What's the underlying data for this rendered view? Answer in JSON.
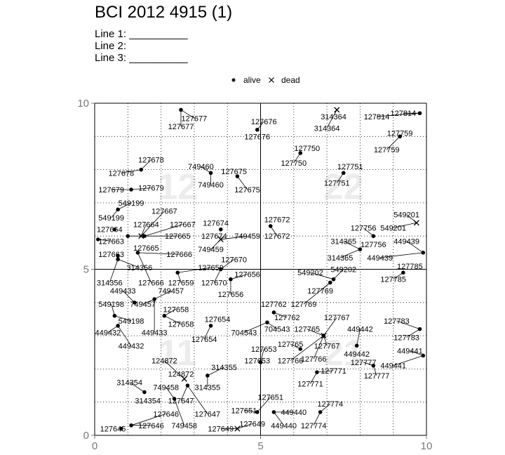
{
  "title": "BCI 2012 4915 (1)",
  "lines": [
    {
      "label": "Line 1:",
      "blank": "__________"
    },
    {
      "label": "Line 2:",
      "blank": ""
    },
    {
      "label": "Line 3:",
      "blank": "__________"
    }
  ],
  "chart_data": {
    "type": "scatter",
    "title": "BCI 2012 4915 (1)",
    "xlabel": "",
    "ylabel": "",
    "xlim": [
      0,
      10
    ],
    "ylim": [
      0,
      10
    ],
    "xticks": [
      "0",
      "5",
      "10"
    ],
    "yticks": [
      "0",
      "5",
      "10"
    ],
    "grid": true,
    "legend_position": "top",
    "legend": [
      {
        "name": "alive",
        "marker": "dot"
      },
      {
        "name": "dead",
        "marker": "cross"
      }
    ],
    "quadrant_labels": [
      {
        "text": "12",
        "x": 2.5,
        "y": 7.5
      },
      {
        "text": "22",
        "x": 7.5,
        "y": 7.5
      },
      {
        "text": "11",
        "x": 2.5,
        "y": 2.5
      },
      {
        "text": "21",
        "x": 7.5,
        "y": 2.5
      }
    ],
    "points": [
      {
        "id": "127677",
        "x": 2.6,
        "y": 9.8,
        "status": "alive",
        "tx": 2.6,
        "ty": 9.3
      },
      {
        "id": "127677",
        "x": 2.6,
        "y": 9.8,
        "status": "alive",
        "tx": 3.0,
        "ty": 9.55
      },
      {
        "id": "127676",
        "x": 4.9,
        "y": 9.2,
        "status": "alive",
        "tx": 5.1,
        "ty": 9.45
      },
      {
        "id": "127676",
        "x": 4.9,
        "y": 9.2,
        "status": "alive",
        "tx": 4.9,
        "ty": 9.0
      },
      {
        "id": "314364",
        "x": 7.3,
        "y": 9.8,
        "status": "dead",
        "tx": 7.2,
        "ty": 9.6
      },
      {
        "id": "314364",
        "x": 7.3,
        "y": 9.8,
        "status": "dead",
        "tx": 7.0,
        "ty": 9.25
      },
      {
        "id": "127814",
        "x": 9.8,
        "y": 9.7,
        "status": "alive",
        "tx": 8.5,
        "ty": 9.6
      },
      {
        "id": "127814",
        "x": 9.8,
        "y": 9.7,
        "status": "alive",
        "tx": 9.3,
        "ty": 9.7
      },
      {
        "id": "127759",
        "x": 9.2,
        "y": 9.0,
        "status": "alive",
        "tx": 9.2,
        "ty": 9.1
      },
      {
        "id": "127759",
        "x": 9.2,
        "y": 9.0,
        "status": "alive",
        "tx": 8.8,
        "ty": 8.6
      },
      {
        "id": "127678",
        "x": 1.4,
        "y": 8.0,
        "status": "alive",
        "tx": 1.7,
        "ty": 8.3
      },
      {
        "id": "127678",
        "x": 1.4,
        "y": 8.0,
        "status": "alive",
        "tx": 0.8,
        "ty": 7.9
      },
      {
        "id": "749460",
        "x": 3.5,
        "y": 7.9,
        "status": "alive",
        "tx": 3.2,
        "ty": 8.1
      },
      {
        "id": "749460",
        "x": 3.5,
        "y": 7.9,
        "status": "alive",
        "tx": 3.5,
        "ty": 7.55
      },
      {
        "id": "127675",
        "x": 4.3,
        "y": 7.8,
        "status": "alive",
        "tx": 4.2,
        "ty": 7.95
      },
      {
        "id": "127675",
        "x": 4.3,
        "y": 7.8,
        "status": "alive",
        "tx": 4.6,
        "ty": 7.4
      },
      {
        "id": "127750",
        "x": 6.2,
        "y": 8.5,
        "status": "alive",
        "tx": 6.4,
        "ty": 8.65
      },
      {
        "id": "127750",
        "x": 6.2,
        "y": 8.5,
        "status": "alive",
        "tx": 6.0,
        "ty": 8.2
      },
      {
        "id": "127751",
        "x": 7.5,
        "y": 7.9,
        "status": "alive",
        "tx": 7.7,
        "ty": 8.1
      },
      {
        "id": "127751",
        "x": 7.5,
        "y": 7.9,
        "status": "alive",
        "tx": 7.3,
        "ty": 7.6
      },
      {
        "id": "127679",
        "x": 1.1,
        "y": 7.4,
        "status": "alive",
        "tx": 0.5,
        "ty": 7.4
      },
      {
        "id": "127679",
        "x": 1.1,
        "y": 7.4,
        "status": "alive",
        "tx": 1.7,
        "ty": 7.45
      },
      {
        "id": "549199",
        "x": 0.7,
        "y": 6.8,
        "status": "alive",
        "tx": 1.1,
        "ty": 7.0
      },
      {
        "id": "549199",
        "x": 0.7,
        "y": 6.8,
        "status": "alive",
        "tx": 0.5,
        "ty": 6.55
      },
      {
        "id": "127667",
        "x": 1.4,
        "y": 6.0,
        "status": "dead",
        "tx": 2.1,
        "ty": 6.75
      },
      {
        "id": "127664",
        "x": 1.4,
        "y": 6.0,
        "status": "dead",
        "tx": 1.55,
        "ty": 6.35
      },
      {
        "id": "127664",
        "x": 0.6,
        "y": 6.2,
        "status": "alive",
        "tx": 0.45,
        "ty": 6.2
      },
      {
        "id": "127667",
        "x": 1.5,
        "y": 6.0,
        "status": "alive",
        "tx": 2.65,
        "ty": 6.35
      },
      {
        "id": "127665",
        "x": 1.0,
        "y": 6.0,
        "status": "alive",
        "tx": 2.5,
        "ty": 6.0
      },
      {
        "id": "127663",
        "x": 0.1,
        "y": 5.9,
        "status": "alive",
        "tx": 0.5,
        "ty": 5.85
      },
      {
        "id": "127674",
        "x": 3.8,
        "y": 6.2,
        "status": "alive",
        "tx": 3.65,
        "ty": 6.4
      },
      {
        "id": "127674",
        "x": 3.8,
        "y": 6.2,
        "status": "alive",
        "tx": 3.6,
        "ty": 6.0
      },
      {
        "id": "749459",
        "x": 3.8,
        "y": 5.9,
        "status": "dead",
        "tx": 4.6,
        "ty": 6.0
      },
      {
        "id": "749459",
        "x": 3.8,
        "y": 5.9,
        "status": "dead",
        "tx": 3.5,
        "ty": 5.6
      },
      {
        "id": "127672",
        "x": 5.3,
        "y": 6.3,
        "status": "alive",
        "tx": 5.5,
        "ty": 6.5
      },
      {
        "id": "127672",
        "x": 5.3,
        "y": 6.3,
        "status": "alive",
        "tx": 5.5,
        "ty": 6.0
      },
      {
        "id": "549201",
        "x": 9.7,
        "y": 6.4,
        "status": "dead",
        "tx": 9.4,
        "ty": 6.65
      },
      {
        "id": "549201",
        "x": 9.7,
        "y": 6.4,
        "status": "dead",
        "tx": 9.0,
        "ty": 6.25
      },
      {
        "id": "127756",
        "x": 8.4,
        "y": 6.0,
        "status": "alive",
        "tx": 8.1,
        "ty": 6.25
      },
      {
        "id": "127756",
        "x": 8.4,
        "y": 6.0,
        "status": "alive",
        "tx": 8.4,
        "ty": 5.75
      },
      {
        "id": "314365",
        "x": 8.0,
        "y": 5.6,
        "status": "alive",
        "tx": 7.5,
        "ty": 5.85
      },
      {
        "id": "314365",
        "x": 8.0,
        "y": 5.6,
        "status": "alive",
        "tx": 7.4,
        "ty": 5.35
      },
      {
        "id": "449439",
        "x": 9.9,
        "y": 5.5,
        "status": "alive",
        "tx": 9.4,
        "ty": 5.85
      },
      {
        "id": "449439",
        "x": 9.9,
        "y": 5.5,
        "status": "alive",
        "tx": 8.6,
        "ty": 5.35
      },
      {
        "id": "127663",
        "x": 0.7,
        "y": 5.4,
        "status": "alive",
        "tx": 0.5,
        "ty": 5.45
      },
      {
        "id": "127665",
        "x": 1.3,
        "y": 5.5,
        "status": "alive",
        "tx": 1.55,
        "ty": 5.65
      },
      {
        "id": "127666",
        "x": 1.3,
        "y": 5.5,
        "status": "alive",
        "tx": 2.55,
        "ty": 5.45
      },
      {
        "id": "314356",
        "x": 0.7,
        "y": 5.3,
        "status": "alive",
        "tx": 1.35,
        "ty": 5.05
      },
      {
        "id": "314356",
        "x": 0.7,
        "y": 5.3,
        "status": "alive",
        "tx": 0.45,
        "ty": 4.6
      },
      {
        "id": "127666",
        "x": 1.3,
        "y": 5.5,
        "status": "alive",
        "tx": 1.7,
        "ty": 4.6
      },
      {
        "id": "127670",
        "x": 3.8,
        "y": 5.0,
        "status": "alive",
        "tx": 4.2,
        "ty": 5.3
      },
      {
        "id": "127670",
        "x": 3.8,
        "y": 5.0,
        "status": "alive",
        "tx": 3.6,
        "ty": 4.6
      },
      {
        "id": "127659",
        "x": 2.5,
        "y": 4.9,
        "status": "alive",
        "tx": 3.5,
        "ty": 5.05
      },
      {
        "id": "127659",
        "x": 2.5,
        "y": 4.9,
        "status": "alive",
        "tx": 2.6,
        "ty": 4.6
      },
      {
        "id": "127656",
        "x": 4.1,
        "y": 4.7,
        "status": "alive",
        "tx": 4.6,
        "ty": 4.85
      },
      {
        "id": "127656",
        "x": 4.1,
        "y": 4.7,
        "status": "alive",
        "tx": 4.1,
        "ty": 4.25
      },
      {
        "id": "549202",
        "x": 7.2,
        "y": 4.7,
        "status": "alive",
        "tx": 6.5,
        "ty": 4.9
      },
      {
        "id": "549202",
        "x": 7.2,
        "y": 4.7,
        "status": "alive",
        "tx": 7.5,
        "ty": 5.0
      },
      {
        "id": "127769",
        "x": 7.1,
        "y": 4.6,
        "status": "alive",
        "tx": 6.8,
        "ty": 4.35
      },
      {
        "id": "127769",
        "x": 7.1,
        "y": 4.6,
        "status": "alive",
        "tx": 6.3,
        "ty": 3.95
      },
      {
        "id": "127785",
        "x": 9.3,
        "y": 4.9,
        "status": "alive",
        "tx": 9.5,
        "ty": 5.1
      },
      {
        "id": "127785",
        "x": 9.3,
        "y": 4.9,
        "status": "alive",
        "tx": 9.0,
        "ty": 4.7
      },
      {
        "id": "449433",
        "x": 1.2,
        "y": 4.0,
        "status": "alive",
        "tx": 0.85,
        "ty": 4.35
      },
      {
        "id": "749457",
        "x": 1.8,
        "y": 4.1,
        "status": "alive",
        "tx": 2.3,
        "ty": 4.35
      },
      {
        "id": "549198",
        "x": 0.6,
        "y": 3.6,
        "status": "alive",
        "tx": 0.5,
        "ty": 3.95
      },
      {
        "id": "749457",
        "x": 1.8,
        "y": 4.1,
        "status": "alive",
        "tx": 1.45,
        "ty": 3.95
      },
      {
        "id": "549198",
        "x": 0.6,
        "y": 3.6,
        "status": "alive",
        "tx": 1.1,
        "ty": 3.45
      },
      {
        "id": "127658",
        "x": 2.1,
        "y": 3.6,
        "status": "alive",
        "tx": 2.45,
        "ty": 3.8
      },
      {
        "id": "127658",
        "x": 2.1,
        "y": 3.6,
        "status": "alive",
        "tx": 2.6,
        "ty": 3.35
      },
      {
        "id": "127654",
        "x": 3.5,
        "y": 3.3,
        "status": "alive",
        "tx": 3.7,
        "ty": 3.5
      },
      {
        "id": "127654",
        "x": 3.5,
        "y": 3.3,
        "status": "alive",
        "tx": 3.3,
        "ty": 2.9
      },
      {
        "id": "449433",
        "x": 1.8,
        "y": 4.1,
        "status": "alive",
        "tx": 1.8,
        "ty": 3.1
      },
      {
        "id": "449432",
        "x": 0.7,
        "y": 3.3,
        "status": "alive",
        "tx": 0.4,
        "ty": 3.1
      },
      {
        "id": "449432",
        "x": 0.7,
        "y": 3.3,
        "status": "alive",
        "tx": 1.1,
        "ty": 2.7
      },
      {
        "id": "127762",
        "x": 5.4,
        "y": 3.7,
        "status": "alive",
        "tx": 5.4,
        "ty": 3.95
      },
      {
        "id": "127762",
        "x": 5.4,
        "y": 3.7,
        "status": "alive",
        "tx": 5.8,
        "ty": 3.55
      },
      {
        "id": "704543",
        "x": 5.2,
        "y": 3.4,
        "status": "alive",
        "tx": 4.5,
        "ty": 3.1
      },
      {
        "id": "704543",
        "x": 5.2,
        "y": 3.4,
        "status": "alive",
        "tx": 5.5,
        "ty": 3.2
      },
      {
        "id": "127767",
        "x": 6.9,
        "y": 3.0,
        "status": "dead",
        "tx": 7.3,
        "ty": 3.55
      },
      {
        "id": "127765",
        "x": 6.9,
        "y": 3.0,
        "status": "dead",
        "tx": 6.4,
        "ty": 3.2
      },
      {
        "id": "127765",
        "x": 6.2,
        "y": 2.6,
        "status": "alive",
        "tx": 5.9,
        "ty": 2.75
      },
      {
        "id": "127767",
        "x": 6.9,
        "y": 3.0,
        "status": "alive",
        "tx": 7.0,
        "ty": 2.7
      },
      {
        "id": "127766",
        "x": 6.9,
        "y": 3.0,
        "status": "alive",
        "tx": 6.6,
        "ty": 2.3
      },
      {
        "id": "127766",
        "x": 6.9,
        "y": 3.0,
        "status": "alive",
        "tx": 5.9,
        "ty": 2.25
      },
      {
        "id": "449442",
        "x": 7.9,
        "y": 2.7,
        "status": "alive",
        "tx": 8.0,
        "ty": 3.2
      },
      {
        "id": "449442",
        "x": 7.9,
        "y": 2.7,
        "status": "alive",
        "tx": 7.9,
        "ty": 2.45
      },
      {
        "id": "127783",
        "x": 9.8,
        "y": 3.2,
        "status": "alive",
        "tx": 9.1,
        "ty": 3.45
      },
      {
        "id": "127783",
        "x": 9.8,
        "y": 3.2,
        "status": "alive",
        "tx": 9.4,
        "ty": 2.95
      },
      {
        "id": "449441",
        "x": 9.9,
        "y": 2.4,
        "status": "alive",
        "tx": 9.5,
        "ty": 2.55
      },
      {
        "id": "449441",
        "x": 9.9,
        "y": 2.4,
        "status": "alive",
        "tx": 9.0,
        "ty": 2.1
      },
      {
        "id": "127777",
        "x": 8.4,
        "y": 2.1,
        "status": "alive",
        "tx": 8.1,
        "ty": 2.2
      },
      {
        "id": "127777",
        "x": 8.4,
        "y": 2.1,
        "status": "alive",
        "tx": 8.5,
        "ty": 1.8
      },
      {
        "id": "127653",
        "x": 5.0,
        "y": 2.2,
        "status": "alive",
        "tx": 5.1,
        "ty": 2.6
      },
      {
        "id": "127653",
        "x": 5.0,
        "y": 2.2,
        "status": "alive",
        "tx": 4.9,
        "ty": 2.25
      },
      {
        "id": "127771",
        "x": 6.7,
        "y": 1.9,
        "status": "alive",
        "tx": 7.2,
        "ty": 1.95
      },
      {
        "id": "127771",
        "x": 6.7,
        "y": 1.9,
        "status": "alive",
        "tx": 6.5,
        "ty": 1.55
      },
      {
        "id": "124872",
        "x": 2.7,
        "y": 1.7,
        "status": "dead",
        "tx": 2.1,
        "ty": 2.25
      },
      {
        "id": "124872",
        "x": 2.7,
        "y": 1.7,
        "status": "dead",
        "tx": 2.6,
        "ty": 1.85
      },
      {
        "id": "314355",
        "x": 3.4,
        "y": 1.8,
        "status": "alive",
        "tx": 3.9,
        "ty": 2.05
      },
      {
        "id": "314355",
        "x": 3.4,
        "y": 1.8,
        "status": "alive",
        "tx": 3.4,
        "ty": 1.45
      },
      {
        "id": "314354",
        "x": 1.5,
        "y": 1.3,
        "status": "alive",
        "tx": 1.05,
        "ty": 1.6
      },
      {
        "id": "314354",
        "x": 1.5,
        "y": 1.3,
        "status": "alive",
        "tx": 1.6,
        "ty": 1.05
      },
      {
        "id": "749458",
        "x": 2.4,
        "y": 1.1,
        "status": "alive",
        "tx": 2.15,
        "ty": 1.45
      },
      {
        "id": "127647",
        "x": 2.8,
        "y": 1.5,
        "status": "alive",
        "tx": 2.6,
        "ty": 1.05
      },
      {
        "id": "127651",
        "x": 4.9,
        "y": 0.7,
        "status": "alive",
        "tx": 5.3,
        "ty": 1.15
      },
      {
        "id": "127774",
        "x": 6.8,
        "y": 0.7,
        "status": "alive",
        "tx": 7.1,
        "ty": 0.95
      },
      {
        "id": "127651",
        "x": 4.9,
        "y": 0.7,
        "status": "alive",
        "tx": 4.5,
        "ty": 0.75
      },
      {
        "id": "449440",
        "x": 5.4,
        "y": 0.7,
        "status": "alive",
        "tx": 6.0,
        "ty": 0.7
      },
      {
        "id": "127646",
        "x": 1.1,
        "y": 0.3,
        "status": "alive",
        "tx": 2.15,
        "ty": 0.65
      },
      {
        "id": "127647",
        "x": 2.8,
        "y": 1.5,
        "status": "alive",
        "tx": 3.4,
        "ty": 0.65
      },
      {
        "id": "127649",
        "x": 4.3,
        "y": 0.2,
        "status": "dead",
        "tx": 4.75,
        "ty": 0.35
      },
      {
        "id": "449440",
        "x": 5.4,
        "y": 0.7,
        "status": "alive",
        "tx": 5.7,
        "ty": 0.3
      },
      {
        "id": "127774",
        "x": 6.8,
        "y": 0.7,
        "status": "alive",
        "tx": 6.6,
        "ty": 0.3
      },
      {
        "id": "127646",
        "x": 1.1,
        "y": 0.3,
        "status": "alive",
        "tx": 1.7,
        "ty": 0.3
      },
      {
        "id": "749458",
        "x": 2.4,
        "y": 1.1,
        "status": "alive",
        "tx": 2.7,
        "ty": 0.3
      },
      {
        "id": "127649",
        "x": 4.3,
        "y": 0.2,
        "status": "dead",
        "tx": 3.8,
        "ty": 0.2
      },
      {
        "id": "127645",
        "x": 0.8,
        "y": 0.2,
        "status": "alive",
        "tx": 0.55,
        "ty": 0.2
      }
    ]
  }
}
